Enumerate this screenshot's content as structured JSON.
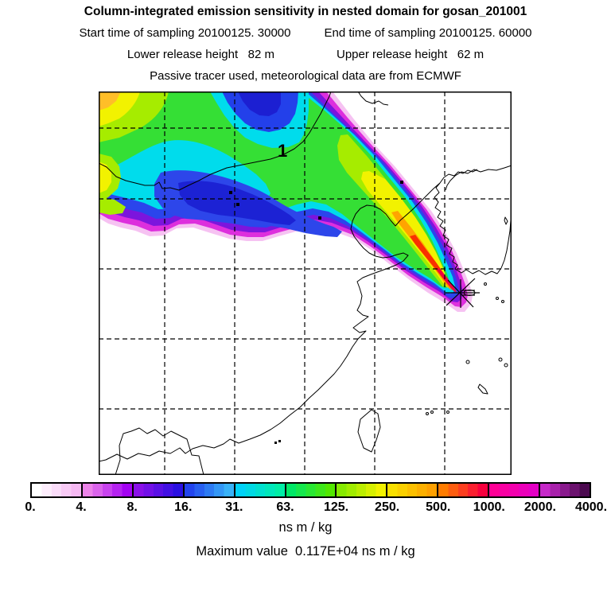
{
  "header": {
    "title": "Column-integrated emission sensitivity in nested domain for gosan_201001",
    "sampling": {
      "start_label": "Start time of sampling 20100125. 30000",
      "end_label": "End time of sampling 20100125. 60000"
    },
    "release": {
      "lower_label": "Lower release height   82 m",
      "upper_label": "Upper release height   62 m"
    },
    "tracer_line": "Passive tracer used, meteorological data are from ECMWF"
  },
  "map": {
    "domain_label": "1",
    "marker": "gosan-receptor-asterisk"
  },
  "colorbar": {
    "tick_labels": [
      "0.",
      "4.",
      "8.",
      "16.",
      "31.",
      "63.",
      "125.",
      "250.",
      "500.",
      "1000.",
      "2000.",
      "4000."
    ],
    "units": "ns m / kg",
    "segments": [
      [
        "#ffffff",
        "#f5b8f2"
      ],
      [
        "#ec83e9",
        "#a303f2"
      ],
      [
        "#8a10e8",
        "#2a10e2"
      ],
      [
        "#2244ee",
        "#38b2f8"
      ],
      [
        "#00d2f8",
        "#00eea6"
      ],
      [
        "#00e866",
        "#52e800"
      ],
      [
        "#86ea00",
        "#f2f200"
      ],
      [
        "#f8e000",
        "#ffa000"
      ],
      [
        "#ff7c00",
        "#f8003e"
      ],
      [
        "#ff0096",
        "#e400c4"
      ],
      [
        "#c629c9",
        "#4c0a50"
      ]
    ]
  },
  "footer": {
    "max_line": "Maximum value  0.117E+04 ns m / kg"
  },
  "chart_data": {
    "type": "heatmap",
    "title": "Column-integrated emission sensitivity in nested domain for gosan_201001",
    "station": "gosan",
    "period": "201001",
    "sampling_start": "20100125. 30000",
    "sampling_end": "20100125. 60000",
    "lower_release_height_m": 82,
    "upper_release_height_m": 62,
    "tracer": "Passive tracer",
    "meteorology": "ECMWF",
    "units": "ns m / kg",
    "colorbar_levels": [
      0,
      4,
      8,
      16,
      31,
      63,
      125,
      250,
      500,
      1000,
      2000,
      4000
    ],
    "maximum_value_text": "0.117E+04",
    "maximum_value": 1170,
    "domain_label": "1",
    "grid": {
      "vertical_gridlines": 5,
      "horizontal_gridlines": 5,
      "style": "dashed",
      "tick_labels_shown": false
    },
    "legend_position": "bottom",
    "description": "Footprint emission-sensitivity plume extends from the receptor at Gosan (Jeju Island, marked with an asterisk) north-westward across the Yellow Sea, Bohai, northeast China and Mongolia. Sensitivity is highest (yellow-orange-red, 125-1000 ns m/kg) in a narrow corridor just upwind of the receptor, with broad green/cyan/blue areas (8-125 ns m/kg) over the continent and magenta/pink fringes (0-8 ns m/kg) at the plume edges."
  }
}
